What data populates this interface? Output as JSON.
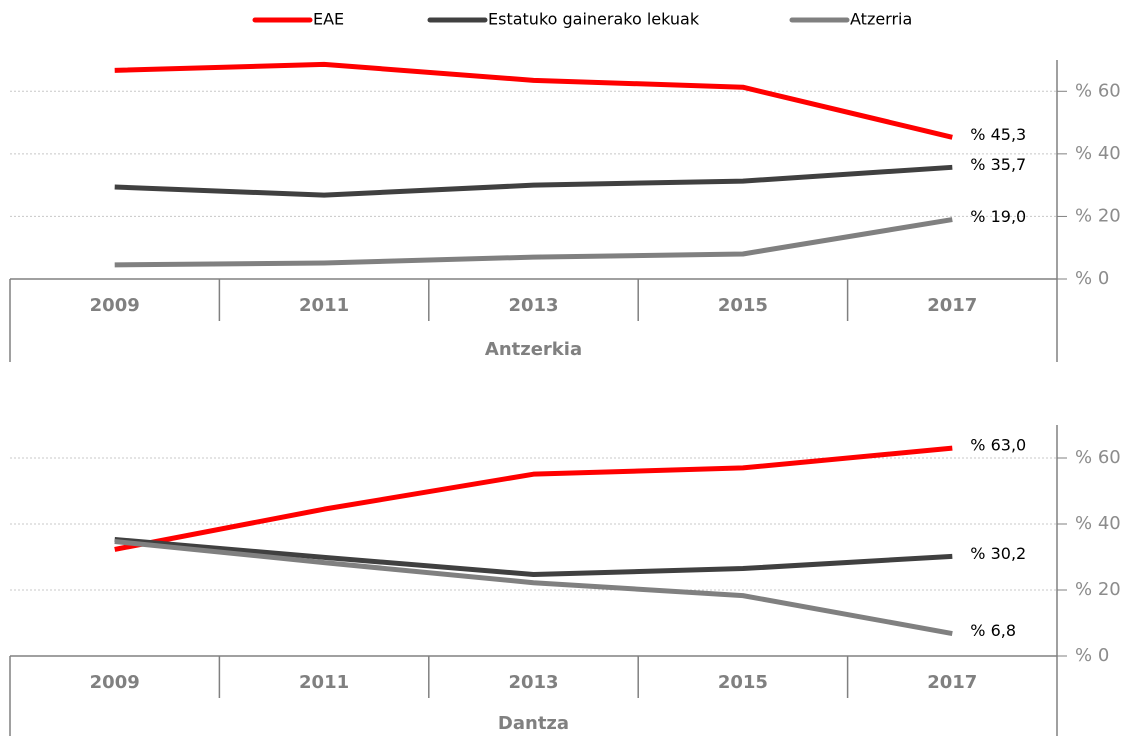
{
  "chart_data": [
    {
      "type": "line",
      "xlabel": "Antzerkia",
      "categories": [
        "2009",
        "2011",
        "2013",
        "2015",
        "2017"
      ],
      "ylim": [
        0,
        70
      ],
      "yticks": [
        {
          "value": 0,
          "label": "% 0"
        },
        {
          "value": 20,
          "label": "% 20"
        },
        {
          "value": 40,
          "label": "% 40"
        },
        {
          "value": 60,
          "label": "% 60"
        }
      ],
      "grid": true,
      "series": [
        {
          "name": "EAE",
          "color": "#ff0000",
          "values": [
            66.7,
            68.6,
            63.5,
            61.3,
            45.3
          ],
          "value_labels": [
            null,
            null,
            null,
            null,
            "% 45,3"
          ]
        },
        {
          "name": "Estatuko gainerako lekuak",
          "color": "#404040",
          "values": [
            29.4,
            26.8,
            30.0,
            31.3,
            35.7
          ],
          "value_labels": [
            null,
            null,
            null,
            null,
            "% 35,7"
          ]
        },
        {
          "name": "Atzerria",
          "color": "#808080",
          "values": [
            4.5,
            5.1,
            7.0,
            8.0,
            19.0
          ],
          "value_labels": [
            null,
            null,
            null,
            null,
            "% 19,0"
          ]
        }
      ]
    },
    {
      "type": "line",
      "xlabel": "Dantza",
      "categories": [
        "2009",
        "2011",
        "2013",
        "2015",
        "2017"
      ],
      "ylim": [
        0,
        70
      ],
      "yticks": [
        {
          "value": 0,
          "label": "% 0"
        },
        {
          "value": 20,
          "label": "% 20"
        },
        {
          "value": 40,
          "label": "% 40"
        },
        {
          "value": 60,
          "label": "% 60"
        }
      ],
      "grid": true,
      "series": [
        {
          "color": "#ff0000",
          "values": [
            32.3,
            44.5,
            55.1,
            57.0,
            63.0
          ],
          "value_labels": [
            null,
            null,
            null,
            null,
            "% 63,0"
          ]
        },
        {
          "color": "#404040",
          "values": [
            35.3,
            29.9,
            24.7,
            26.5,
            30.2
          ],
          "value_labels": [
            null,
            null,
            null,
            null,
            "% 30,2"
          ]
        },
        {
          "color": "#808080",
          "values": [
            34.7,
            28.3,
            22.2,
            18.3,
            6.8
          ],
          "value_labels": [
            null,
            null,
            null,
            null,
            "% 6,8"
          ]
        }
      ]
    }
  ]
}
